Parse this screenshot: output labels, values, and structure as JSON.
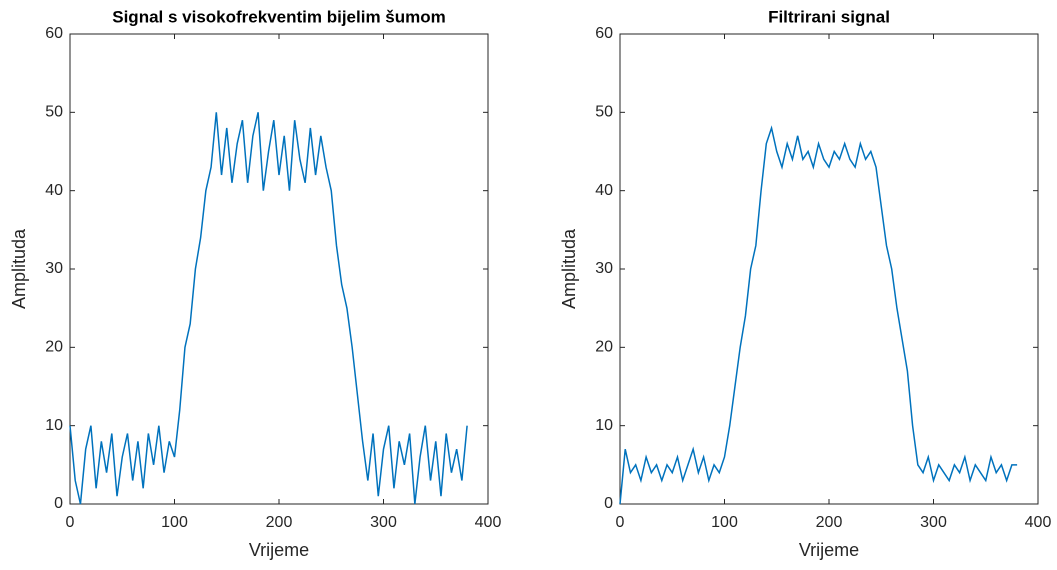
{
  "chart_data": [
    {
      "type": "line",
      "title": "Signal s visokofrekventim bijelim šumom",
      "xlabel": "Vrijeme",
      "ylabel": "Amplituda",
      "color": "#0072bd",
      "xlim": [
        0,
        400
      ],
      "xticks": [
        0,
        100,
        200,
        300,
        400
      ],
      "ylim": [
        0,
        60
      ],
      "yticks": [
        0,
        10,
        20,
        30,
        40,
        50,
        60
      ],
      "x": [
        0,
        5,
        10,
        15,
        20,
        25,
        30,
        35,
        40,
        45,
        50,
        55,
        60,
        65,
        70,
        75,
        80,
        85,
        90,
        95,
        100,
        105,
        110,
        115,
        120,
        125,
        130,
        135,
        140,
        145,
        150,
        155,
        160,
        165,
        170,
        175,
        180,
        185,
        190,
        195,
        200,
        205,
        210,
        215,
        220,
        225,
        230,
        235,
        240,
        245,
        250,
        255,
        260,
        265,
        270,
        275,
        280,
        285,
        290,
        295,
        300,
        305,
        310,
        315,
        320,
        325,
        330,
        335,
        340,
        345,
        350,
        355,
        360,
        365,
        370,
        375,
        380
      ],
      "values": [
        10,
        3,
        0,
        7,
        10,
        2,
        8,
        4,
        9,
        1,
        6,
        9,
        3,
        8,
        2,
        9,
        5,
        10,
        4,
        8,
        6,
        12,
        20,
        23,
        30,
        34,
        40,
        43,
        50,
        42,
        48,
        41,
        46,
        49,
        41,
        47,
        50,
        40,
        45,
        49,
        42,
        47,
        40,
        49,
        44,
        41,
        48,
        42,
        47,
        43,
        40,
        33,
        28,
        25,
        20,
        14,
        8,
        3,
        9,
        1,
        7,
        10,
        2,
        8,
        5,
        9,
        0,
        6,
        10,
        3,
        8,
        1,
        9,
        4,
        7,
        3,
        10
      ]
    },
    {
      "type": "line",
      "title": "Filtrirani signal",
      "xlabel": "Vrijeme",
      "ylabel": "Amplituda",
      "color": "#0072bd",
      "xlim": [
        0,
        400
      ],
      "xticks": [
        0,
        100,
        200,
        300,
        400
      ],
      "ylim": [
        0,
        60
      ],
      "yticks": [
        0,
        10,
        20,
        30,
        40,
        50,
        60
      ],
      "x": [
        0,
        5,
        10,
        15,
        20,
        25,
        30,
        35,
        40,
        45,
        50,
        55,
        60,
        65,
        70,
        75,
        80,
        85,
        90,
        95,
        100,
        105,
        110,
        115,
        120,
        125,
        130,
        135,
        140,
        145,
        150,
        155,
        160,
        165,
        170,
        175,
        180,
        185,
        190,
        195,
        200,
        205,
        210,
        215,
        220,
        225,
        230,
        235,
        240,
        245,
        250,
        255,
        260,
        265,
        270,
        275,
        280,
        285,
        290,
        295,
        300,
        305,
        310,
        315,
        320,
        325,
        330,
        335,
        340,
        345,
        350,
        355,
        360,
        365,
        370,
        375,
        380
      ],
      "values": [
        0,
        7,
        4,
        5,
        3,
        6,
        4,
        5,
        3,
        5,
        4,
        6,
        3,
        5,
        7,
        4,
        6,
        3,
        5,
        4,
        6,
        10,
        15,
        20,
        24,
        30,
        33,
        40,
        46,
        48,
        45,
        43,
        46,
        44,
        47,
        44,
        45,
        43,
        46,
        44,
        43,
        45,
        44,
        46,
        44,
        43,
        46,
        44,
        45,
        43,
        38,
        33,
        30,
        25,
        21,
        17,
        10,
        5,
        4,
        6,
        3,
        5,
        4,
        3,
        5,
        4,
        6,
        3,
        5,
        4,
        3,
        6,
        4,
        5,
        3,
        5,
        5
      ]
    }
  ]
}
